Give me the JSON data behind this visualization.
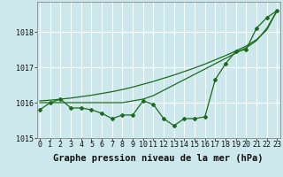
{
  "bg_color": "#cce8ec",
  "grid_color": "#ffffff",
  "line_color": "#1a6b1a",
  "x_values": [
    0,
    1,
    2,
    3,
    4,
    5,
    6,
    7,
    8,
    9,
    10,
    11,
    12,
    13,
    14,
    15,
    16,
    17,
    18,
    19,
    20,
    21,
    22,
    23
  ],
  "series_main": [
    1015.8,
    1016.0,
    1016.1,
    1015.85,
    1015.85,
    1015.8,
    1015.7,
    1015.55,
    1015.65,
    1015.65,
    1016.05,
    1015.95,
    1015.55,
    1015.35,
    1015.55,
    1015.55,
    1015.6,
    1016.65,
    1017.1,
    1017.45,
    1017.5,
    1018.1,
    1018.4,
    1018.6
  ],
  "series_trend1": [
    1016.0,
    1016.0,
    1016.0,
    1016.0,
    1016.0,
    1016.0,
    1016.0,
    1016.0,
    1016.0,
    1016.05,
    1016.1,
    1016.2,
    1016.35,
    1016.5,
    1016.65,
    1016.8,
    1016.95,
    1017.1,
    1017.25,
    1017.4,
    1017.55,
    1017.75,
    1018.1,
    1018.6
  ],
  "series_trend2": [
    1016.05,
    1016.07,
    1016.1,
    1016.13,
    1016.17,
    1016.21,
    1016.26,
    1016.31,
    1016.37,
    1016.44,
    1016.52,
    1016.6,
    1016.69,
    1016.78,
    1016.88,
    1016.98,
    1017.09,
    1017.21,
    1017.33,
    1017.46,
    1017.6,
    1017.78,
    1018.05,
    1018.6
  ],
  "ylim": [
    1015.0,
    1018.85
  ],
  "yticks": [
    1015,
    1016,
    1017,
    1018
  ],
  "xlabel": "Graphe pression niveau de la mer (hPa)",
  "tick_fontsize": 6.0,
  "xlabel_fontsize": 7.5
}
